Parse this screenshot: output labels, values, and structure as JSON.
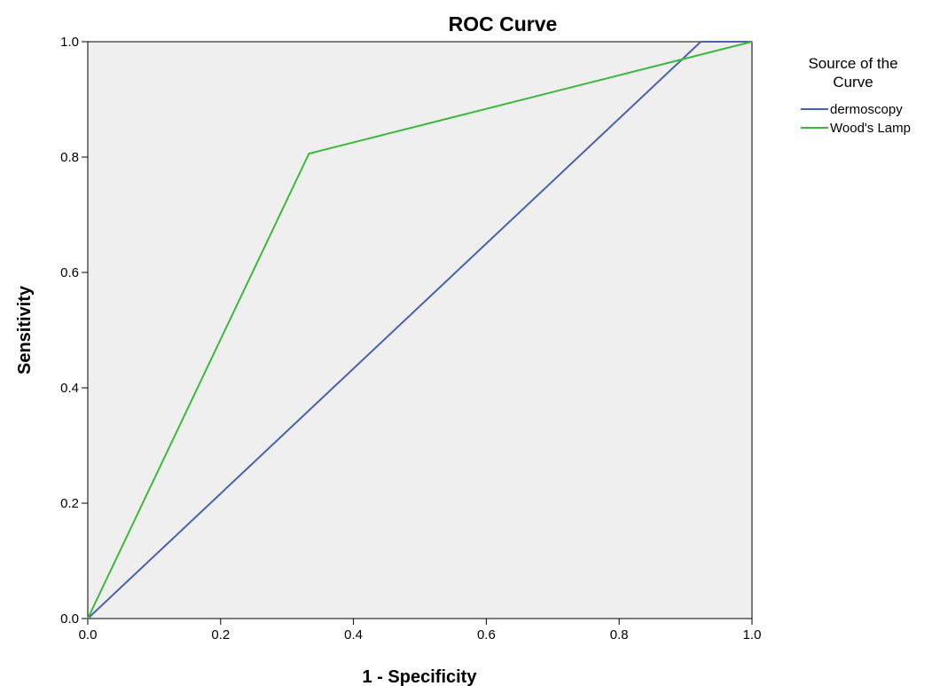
{
  "chart_data": {
    "type": "line",
    "title": "ROC Curve",
    "xlabel": "1 - Specificity",
    "ylabel": "Sensitivity",
    "xlim": [
      0,
      1
    ],
    "ylim": [
      0,
      1
    ],
    "x_ticks": [
      "0.0",
      "0.2",
      "0.4",
      "0.6",
      "0.8",
      "1.0"
    ],
    "y_ticks": [
      "0.0",
      "0.2",
      "0.4",
      "0.6",
      "0.8",
      "1.0"
    ],
    "grid": false,
    "legend": {
      "title_lines": [
        "Source of the",
        "Curve"
      ],
      "placement": "right"
    },
    "series": [
      {
        "name": "dermoscopy",
        "color": "#4a62a8",
        "points": [
          [
            0.0,
            0.0
          ],
          [
            0.923,
            1.0
          ],
          [
            1.0,
            1.0
          ]
        ]
      },
      {
        "name": "Wood's Lamp",
        "color": "#3cb83c",
        "points": [
          [
            0.0,
            0.0
          ],
          [
            0.333,
            0.806
          ],
          [
            1.0,
            1.0
          ]
        ]
      }
    ],
    "colors": {
      "plot_background": "#efefef",
      "axis": "#000000"
    }
  }
}
